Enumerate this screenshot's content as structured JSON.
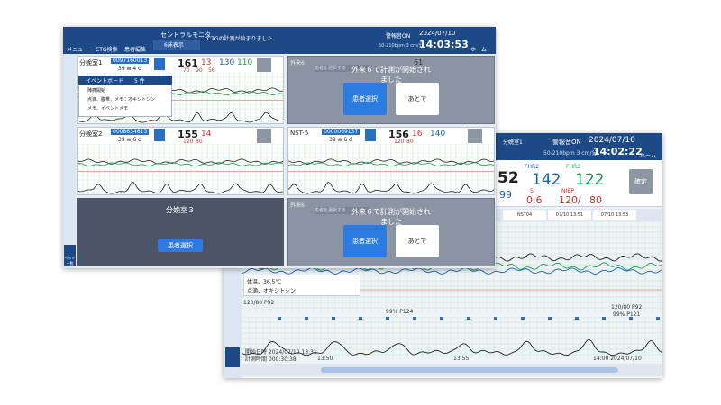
{
  "back_window": {
    "header": {
      "menu": "メニュー",
      "ctg_search": "CTG検索",
      "patient_edit": "患者編集",
      "central_monitor": "セントラルモニタ",
      "bed_display": "6床表示",
      "message": "CTGの計測が始まりました",
      "alarm": "警報音ON",
      "range": "50-210bpm 3 cm/分",
      "date": "2024/07/10",
      "time": "14:03:53",
      "home": "ホーム"
    },
    "sidebar": {
      "list": "ベッド一覧"
    },
    "beds": [
      {
        "kind": "monitor",
        "name": "分娩室1",
        "id": "0097160013",
        "gest": "39 w 4 d",
        "fhr": 161,
        "values": [
          13,
          130,
          110
        ],
        "lower": [
          70,
          90,
          56
        ],
        "event_board": {
          "title": "イベントボード",
          "count": "5 件",
          "items": [
            "陣痛開始",
            "点滴、腹帯、メモ：オキシトシン",
            "メモ、イベントメモ"
          ]
        }
      },
      {
        "kind": "prompt",
        "name": "外来6",
        "placeholder": "患者を選択する",
        "fhr": 61,
        "message": "外来６で計測が開始されました",
        "select": "患者選択",
        "later": "あとで"
      },
      {
        "kind": "monitor",
        "name": "分娩室2",
        "id": "0008634613",
        "gest": "39 w 6 d",
        "fhr": 155,
        "values": [
          14
        ],
        "lower": [
          120,
          80
        ]
      },
      {
        "kind": "monitor",
        "name": "NST-5",
        "id": "0000069137",
        "gest": "39 w 6 d",
        "fhr": 156,
        "values": [
          16,
          140
        ],
        "lower": [
          120,
          80
        ]
      },
      {
        "kind": "empty",
        "name": "分娩室３",
        "select": "患者選択"
      },
      {
        "kind": "prompt",
        "name": "外来6",
        "placeholder": "患者を選択する",
        "message": "外来６で計測が開始されました",
        "select": "患者選択",
        "later": "あとで"
      }
    ]
  },
  "front_window": {
    "header": {
      "bed": "分娩室1",
      "alarm": "警報音ON",
      "range": "50-210bpm 3 cm/分",
      "date": "2024/07/10",
      "time": "14:02:22",
      "home": "ホーム"
    },
    "vitals": {
      "fhr1": 52,
      "spo2": 99,
      "fhr2_label": "FHR2",
      "fhr2": 142,
      "si_label": "SI",
      "si": 0.6,
      "fhr3_label": "FHR3",
      "fhr3": 122,
      "nibp_label": "NIBP",
      "nibp_sys": "120/",
      "nibp_dia": 80,
      "confirm": "確定"
    },
    "tabs": [
      "NST04",
      "07/10 13:51",
      "07/10 13:53"
    ],
    "annotations": {
      "nibp1": "120/80 P92",
      "spo2_1": "99% P124",
      "nibp2": "120/80 P92",
      "spo2_2": "99% P121"
    },
    "events": [
      "体温、36.5℃",
      "点滴、オキシトシン"
    ],
    "footer": {
      "start": "開始日時 2024/07/10 13:31",
      "duration": "計測時間 000:30:38",
      "t1": "13:50",
      "t2": "13:55",
      "t3": "14:00 2024/07/10"
    }
  }
}
